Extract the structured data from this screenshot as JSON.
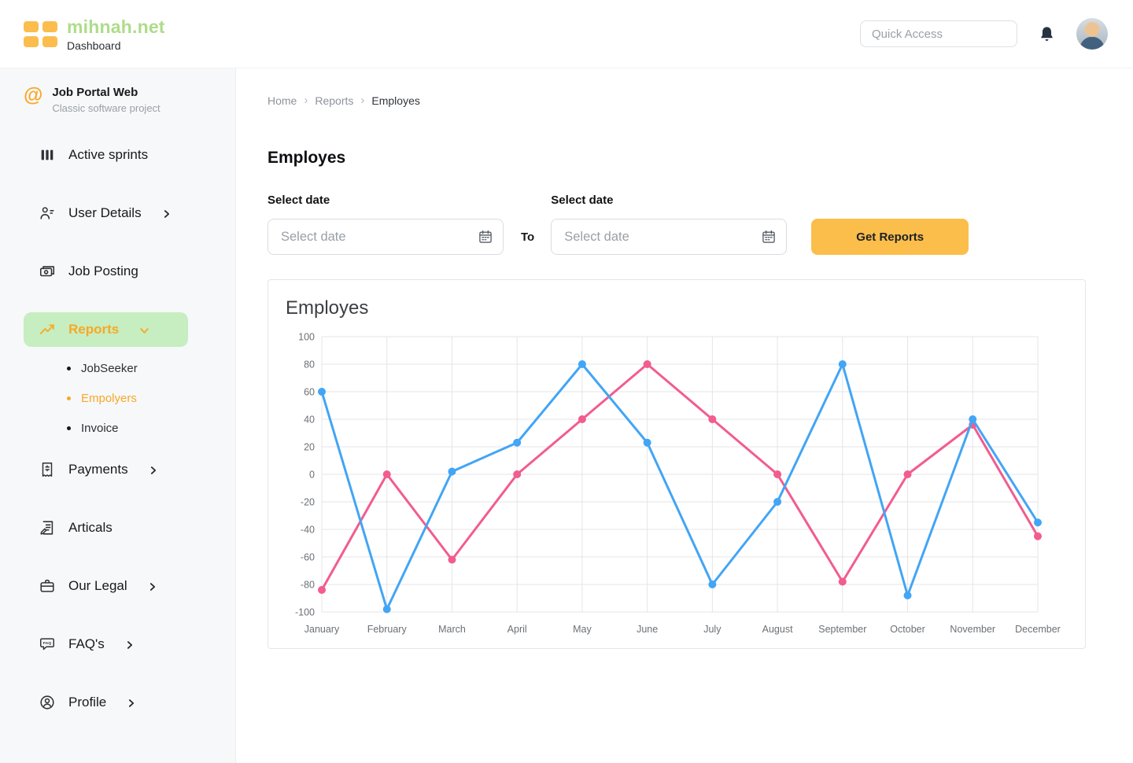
{
  "header": {
    "brand": "mihnah.net",
    "subtitle": "Dashboard",
    "quick_access_placeholder": "Quick Access"
  },
  "sidebar": {
    "project_name": "Job Portal Web",
    "project_description": "Classic software project",
    "items": {
      "active_sprints": "Active sprints",
      "user_details": "User Details",
      "job_posting": "Job Posting",
      "reports": "Reports",
      "payments": "Payments",
      "articals": "Articals",
      "our_legal": "Our Legal",
      "faqs": "FAQ's",
      "profile": "Profile"
    },
    "reports_submenu": [
      "JobSeeker",
      "Empolyers",
      "Invoice"
    ]
  },
  "breadcrumb": {
    "items": [
      "Home",
      "Reports",
      "Employes"
    ]
  },
  "page_title": "Employes",
  "filters": {
    "from_label": "Select date",
    "to_label": "Select date",
    "between_label": "To",
    "date_placeholder": "Select date",
    "submit_label": "Get Reports"
  },
  "chart": {
    "title": "Employes"
  },
  "chart_data": {
    "type": "line",
    "title": "Employes",
    "categories": [
      "January",
      "February",
      "March",
      "April",
      "May",
      "June",
      "July",
      "August",
      "September",
      "October",
      "November",
      "December"
    ],
    "series": [
      {
        "name": "series-pink",
        "color": "#F25C8E",
        "values": [
          -84,
          0,
          -62,
          0,
          40,
          80,
          40,
          0,
          -78,
          0,
          36,
          -45
        ]
      },
      {
        "name": "series-blue",
        "color": "#42A5F5",
        "values": [
          60,
          -98,
          2,
          23,
          80,
          23,
          -80,
          -20,
          80,
          -88,
          40,
          -35
        ]
      }
    ],
    "xlabel": "",
    "ylabel": "",
    "ylim": [
      -100,
      100
    ],
    "yticks": [
      100,
      80,
      60,
      40,
      20,
      0,
      -20,
      -40,
      -60,
      -80,
      -100
    ],
    "grid": true,
    "legend": "none"
  },
  "colors": {
    "button_accent": "#FBBE4B",
    "active_item_bg": "#C6EEC0",
    "active_item_text": "#F9A825",
    "brand_text": "#AEDC8A",
    "logo_orange": "#FBBD4E"
  }
}
